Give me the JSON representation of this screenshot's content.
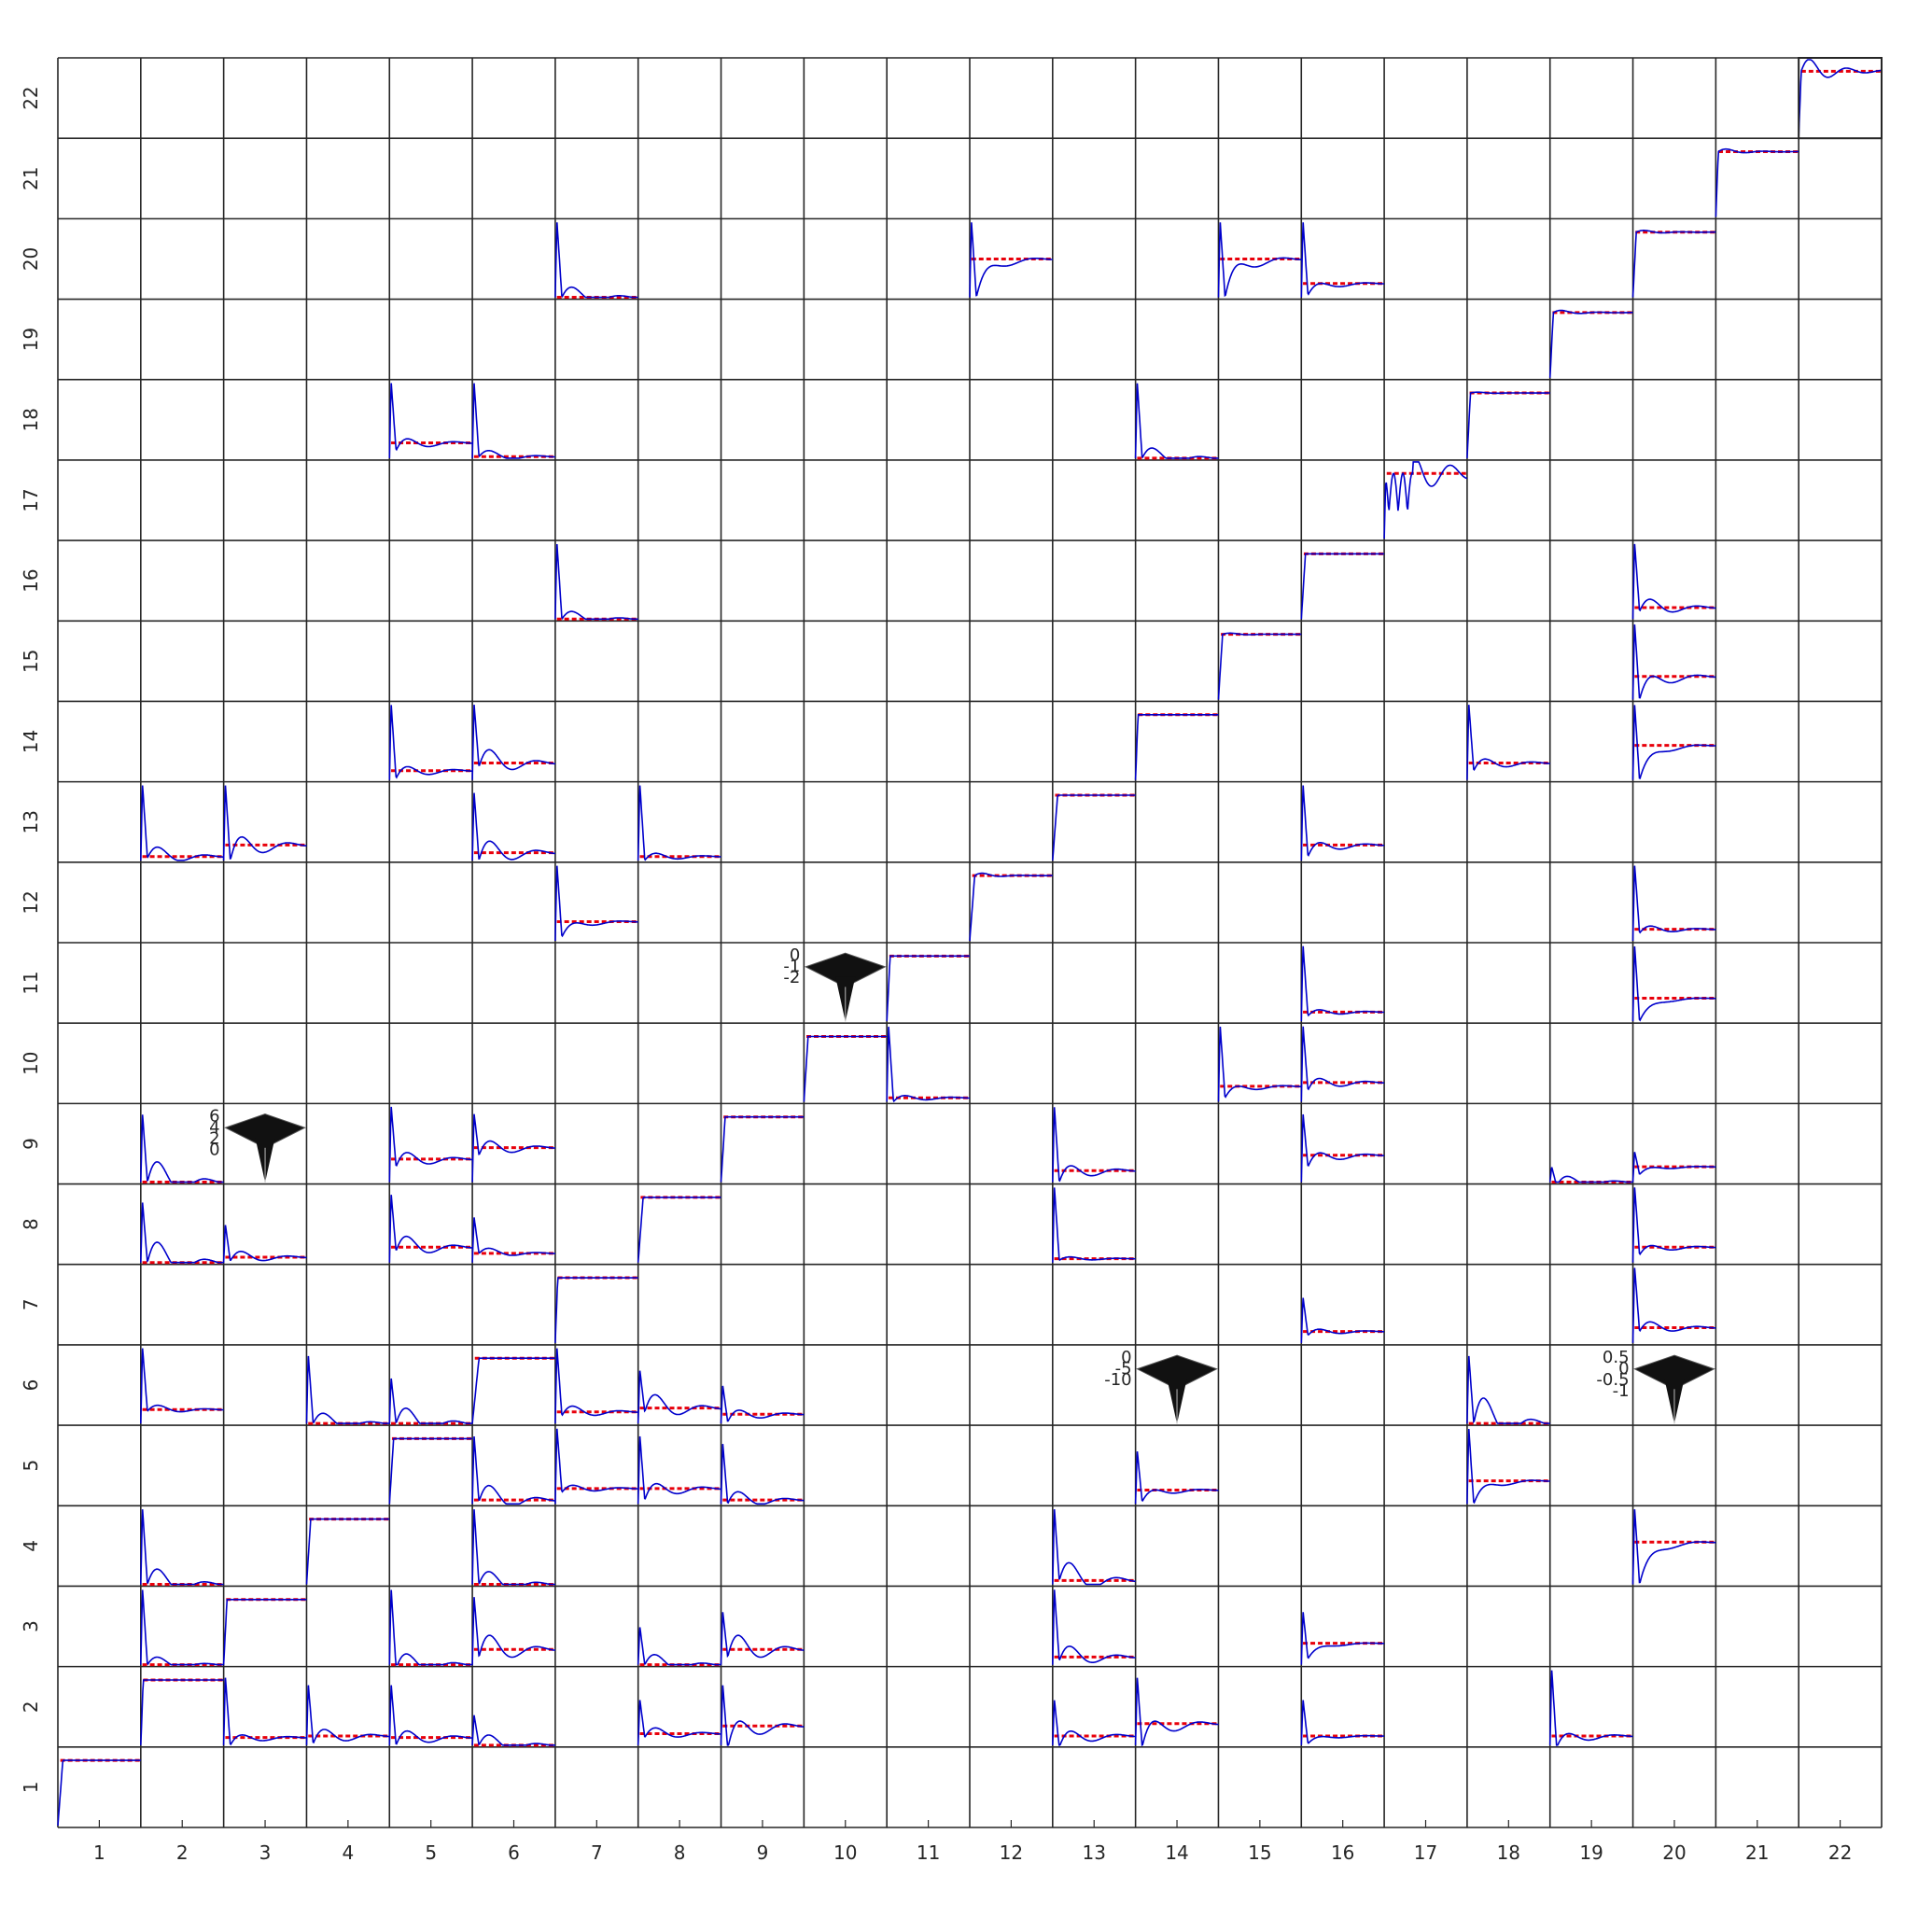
{
  "chart_data": {
    "type": "line",
    "title": "",
    "xlabel": "",
    "ylabel": "",
    "grid_size": 22,
    "x_tick_labels": [
      "1",
      "2",
      "3",
      "4",
      "5",
      "6",
      "7",
      "8",
      "9",
      "10",
      "11",
      "12",
      "13",
      "14",
      "15",
      "16",
      "17",
      "18",
      "19",
      "20",
      "21",
      "22"
    ],
    "y_tick_labels": [
      "1",
      "2",
      "3",
      "4",
      "5",
      "6",
      "7",
      "8",
      "9",
      "10",
      "11",
      "12",
      "13",
      "14",
      "15",
      "16",
      "17",
      "18",
      "19",
      "20",
      "21",
      "22"
    ],
    "grid": true,
    "colors": {
      "response": "#0000cc",
      "reference": "#e8000b",
      "frame": "#262626",
      "surface": "#111111"
    },
    "cell_response_range": [
      0,
      1
    ],
    "diagonal_response": {
      "kind": "step_response",
      "ref": 0.85,
      "cells": [
        {
          "col": 1,
          "row": 1,
          "rise": 0.06,
          "osc": 0.0,
          "decay": 4
        },
        {
          "col": 2,
          "row": 2,
          "rise": 0.03,
          "osc": 0.0,
          "decay": 5
        },
        {
          "col": 3,
          "row": 3,
          "rise": 0.04,
          "osc": 0.0,
          "decay": 5
        },
        {
          "col": 4,
          "row": 4,
          "rise": 0.05,
          "osc": 0.0,
          "decay": 5
        },
        {
          "col": 5,
          "row": 5,
          "rise": 0.05,
          "osc": 0.0,
          "decay": 5
        },
        {
          "col": 6,
          "row": 6,
          "rise": 0.08,
          "osc": 0.0,
          "decay": 5
        },
        {
          "col": 7,
          "row": 7,
          "rise": 0.03,
          "osc": 0.0,
          "decay": 5
        },
        {
          "col": 8,
          "row": 8,
          "rise": 0.06,
          "osc": 0.0,
          "decay": 5
        },
        {
          "col": 9,
          "row": 9,
          "rise": 0.05,
          "osc": 0.0,
          "decay": 5
        },
        {
          "col": 10,
          "row": 10,
          "rise": 0.05,
          "osc": 0.0,
          "decay": 5
        },
        {
          "col": 11,
          "row": 11,
          "rise": 0.04,
          "osc": 0.0,
          "decay": 5
        },
        {
          "col": 12,
          "row": 12,
          "rise": 0.06,
          "osc": 0.06,
          "decay": 5
        },
        {
          "col": 13,
          "row": 13,
          "rise": 0.06,
          "osc": 0.0,
          "decay": 5
        },
        {
          "col": 14,
          "row": 14,
          "rise": 0.03,
          "osc": 0.0,
          "decay": 5
        },
        {
          "col": 15,
          "row": 15,
          "rise": 0.05,
          "osc": 0.03,
          "decay": 5
        },
        {
          "col": 16,
          "row": 16,
          "rise": 0.05,
          "osc": 0.0,
          "decay": 5
        },
        {
          "col": 17,
          "row": 17,
          "rise": 0.02,
          "osc": 0.6,
          "decay": 2
        },
        {
          "col": 18,
          "row": 18,
          "rise": 0.04,
          "osc": 0.02,
          "decay": 5
        },
        {
          "col": 19,
          "row": 19,
          "rise": 0.04,
          "osc": 0.05,
          "decay": 4
        },
        {
          "col": 20,
          "row": 20,
          "rise": 0.04,
          "osc": 0.04,
          "decay": 4
        },
        {
          "col": 21,
          "row": 21,
          "rise": 0.03,
          "osc": 0.06,
          "decay": 4
        },
        {
          "col": 22,
          "row": 22,
          "rise": 0.03,
          "osc": 0.25,
          "decay": 3
        }
      ]
    },
    "coupling_responses": {
      "kind": "impulse_response",
      "cells": [
        {
          "col": 2,
          "row": 13,
          "ref": 0.05,
          "peak": 1.0,
          "hump": 0.2,
          "dip": -0.02
        },
        {
          "col": 3,
          "row": 13,
          "ref": 0.2,
          "peak": 1.0,
          "hump": 0.3,
          "dip": -0.2
        },
        {
          "col": 2,
          "row": 9,
          "ref": 0.0,
          "peak": 0.9,
          "hump": 0.4,
          "dip": 0.0
        },
        {
          "col": 2,
          "row": 8,
          "ref": 0.0,
          "peak": 0.8,
          "hump": 0.4,
          "dip": 0.0
        },
        {
          "col": 3,
          "row": 8,
          "ref": 0.07,
          "peak": 0.5,
          "hump": 0.15,
          "dip": -0.05
        },
        {
          "col": 2,
          "row": 6,
          "ref": 0.18,
          "peak": 1.0,
          "hump": 0.1,
          "dip": -0.02
        },
        {
          "col": 2,
          "row": 4,
          "ref": 0.0,
          "peak": 1.0,
          "hump": 0.3,
          "dip": 0.0
        },
        {
          "col": 2,
          "row": 3,
          "ref": 0.0,
          "peak": 1.0,
          "hump": 0.15,
          "dip": 0.0
        },
        {
          "col": 3,
          "row": 2,
          "ref": 0.1,
          "peak": 0.9,
          "hump": 0.12,
          "dip": -0.1
        },
        {
          "col": 4,
          "row": 6,
          "ref": 0.0,
          "peak": 0.9,
          "hump": 0.2,
          "dip": 0.0
        },
        {
          "col": 4,
          "row": 2,
          "ref": 0.12,
          "peak": 0.8,
          "hump": 0.2,
          "dip": -0.1
        },
        {
          "col": 5,
          "row": 18,
          "ref": 0.2,
          "peak": 1.0,
          "hump": 0.15,
          "dip": -0.1
        },
        {
          "col": 5,
          "row": 14,
          "ref": 0.12,
          "peak": 1.0,
          "hump": 0.15,
          "dip": -0.1
        },
        {
          "col": 5,
          "row": 9,
          "ref": 0.3,
          "peak": 1.0,
          "hump": 0.2,
          "dip": -0.1
        },
        {
          "col": 5,
          "row": 8,
          "ref": 0.2,
          "peak": 0.9,
          "hump": 0.25,
          "dip": -0.05
        },
        {
          "col": 5,
          "row": 6,
          "ref": 0.0,
          "peak": 0.6,
          "hump": 0.3,
          "dip": 0.0
        },
        {
          "col": 5,
          "row": 3,
          "ref": 0.0,
          "peak": 1.0,
          "hump": 0.25,
          "dip": -0.05
        },
        {
          "col": 5,
          "row": 2,
          "ref": 0.1,
          "peak": 0.8,
          "hump": 0.2,
          "dip": -0.1
        },
        {
          "col": 6,
          "row": 18,
          "ref": 0.02,
          "peak": 1.0,
          "hump": 0.12,
          "dip": 0.0
        },
        {
          "col": 6,
          "row": 14,
          "ref": 0.22,
          "peak": 1.0,
          "hump": 0.3,
          "dip": -0.05
        },
        {
          "col": 6,
          "row": 13,
          "ref": 0.1,
          "peak": 0.9,
          "hump": 0.3,
          "dip": -0.1
        },
        {
          "col": 6,
          "row": 9,
          "ref": 0.45,
          "peak": 0.9,
          "hump": 0.2,
          "dip": -0.1
        },
        {
          "col": 6,
          "row": 8,
          "ref": 0.12,
          "peak": 0.6,
          "hump": 0.1,
          "dip": 0.0
        },
        {
          "col": 6,
          "row": 5,
          "ref": 0.05,
          "peak": 0.9,
          "hump": 0.3,
          "dip": -0.02
        },
        {
          "col": 6,
          "row": 4,
          "ref": 0.0,
          "peak": 1.0,
          "hump": 0.25,
          "dip": 0.0
        },
        {
          "col": 6,
          "row": 3,
          "ref": 0.2,
          "peak": 0.9,
          "hump": 0.35,
          "dip": -0.1
        },
        {
          "col": 6,
          "row": 2,
          "ref": 0.0,
          "peak": 0.4,
          "hump": 0.2,
          "dip": 0.0
        },
        {
          "col": 7,
          "row": 20,
          "ref": 0.0,
          "peak": 1.0,
          "hump": 0.2,
          "dip": 0.0
        },
        {
          "col": 7,
          "row": 16,
          "ref": 0.0,
          "peak": 1.0,
          "hump": 0.15,
          "dip": 0.0
        },
        {
          "col": 7,
          "row": 12,
          "ref": 0.25,
          "peak": 1.0,
          "hump": 0.1,
          "dip": -0.2
        },
        {
          "col": 7,
          "row": 6,
          "ref": 0.15,
          "peak": 1.0,
          "hump": 0.15,
          "dip": -0.05
        },
        {
          "col": 7,
          "row": 5,
          "ref": 0.2,
          "peak": 1.0,
          "hump": 0.1,
          "dip": -0.05
        },
        {
          "col": 8,
          "row": 13,
          "ref": 0.05,
          "peak": 1.0,
          "hump": 0.1,
          "dip": -0.05
        },
        {
          "col": 8,
          "row": 6,
          "ref": 0.2,
          "peak": 0.7,
          "hump": 0.3,
          "dip": -0.05
        },
        {
          "col": 8,
          "row": 5,
          "ref": 0.2,
          "peak": 0.9,
          "hump": 0.2,
          "dip": -0.15
        },
        {
          "col": 8,
          "row": 3,
          "ref": 0.0,
          "peak": 0.5,
          "hump": 0.2,
          "dip": 0.0
        },
        {
          "col": 8,
          "row": 2,
          "ref": 0.15,
          "peak": 0.6,
          "hump": 0.15,
          "dip": -0.05
        },
        {
          "col": 9,
          "row": 6,
          "ref": 0.12,
          "peak": 0.5,
          "hump": 0.15,
          "dip": -0.1
        },
        {
          "col": 9,
          "row": 5,
          "ref": 0.05,
          "peak": 0.8,
          "hump": 0.2,
          "dip": -0.05
        },
        {
          "col": 9,
          "row": 3,
          "ref": 0.2,
          "peak": 0.7,
          "hump": 0.35,
          "dip": -0.1
        },
        {
          "col": 9,
          "row": 2,
          "ref": 0.25,
          "peak": 0.8,
          "hump": 0.3,
          "dip": -0.3
        },
        {
          "col": 11,
          "row": 10,
          "ref": 0.05,
          "peak": 1.0,
          "hump": 0.08,
          "dip": -0.05
        },
        {
          "col": 12,
          "row": 20,
          "ref": 0.5,
          "peak": 1.0,
          "hump": 0.15,
          "dip": -0.5
        },
        {
          "col": 13,
          "row": 9,
          "ref": 0.15,
          "peak": 1.0,
          "hump": 0.2,
          "dip": -0.15
        },
        {
          "col": 13,
          "row": 8,
          "ref": 0.05,
          "peak": 1.0,
          "hump": 0.05,
          "dip": -0.02
        },
        {
          "col": 13,
          "row": 4,
          "ref": 0.05,
          "peak": 1.0,
          "hump": 0.35,
          "dip": 0.0
        },
        {
          "col": 13,
          "row": 3,
          "ref": 0.1,
          "peak": 1.0,
          "hump": 0.25,
          "dip": -0.05
        },
        {
          "col": 13,
          "row": 2,
          "ref": 0.12,
          "peak": 0.6,
          "hump": 0.2,
          "dip": -0.15
        },
        {
          "col": 14,
          "row": 18,
          "ref": 0.0,
          "peak": 1.0,
          "hump": 0.2,
          "dip": 0.0
        },
        {
          "col": 14,
          "row": 5,
          "ref": 0.18,
          "peak": 0.7,
          "hump": 0.1,
          "dip": -0.15
        },
        {
          "col": 14,
          "row": 2,
          "ref": 0.28,
          "peak": 0.9,
          "hump": 0.25,
          "dip": -0.3
        },
        {
          "col": 15,
          "row": 20,
          "ref": 0.5,
          "peak": 1.0,
          "hump": 0.2,
          "dip": -0.5
        },
        {
          "col": 15,
          "row": 10,
          "ref": 0.2,
          "peak": 1.0,
          "hump": 0.1,
          "dip": -0.15
        },
        {
          "col": 16,
          "row": 20,
          "ref": 0.18,
          "peak": 1.0,
          "hump": 0.1,
          "dip": -0.15
        },
        {
          "col": 16,
          "row": 13,
          "ref": 0.2,
          "peak": 1.0,
          "hump": 0.15,
          "dip": -0.15
        },
        {
          "col": 16,
          "row": 11,
          "ref": 0.12,
          "peak": 1.0,
          "hump": 0.08,
          "dip": -0.05
        },
        {
          "col": 16,
          "row": 10,
          "ref": 0.25,
          "peak": 1.0,
          "hump": 0.15,
          "dip": -0.1
        },
        {
          "col": 16,
          "row": 9,
          "ref": 0.35,
          "peak": 0.9,
          "hump": 0.15,
          "dip": -0.15
        },
        {
          "col": 16,
          "row": 7,
          "ref": 0.15,
          "peak": 0.6,
          "hump": 0.08,
          "dip": -0.05
        },
        {
          "col": 16,
          "row": 3,
          "ref": 0.28,
          "peak": 0.7,
          "hump": 0.05,
          "dip": -0.2
        },
        {
          "col": 16,
          "row": 2,
          "ref": 0.12,
          "peak": 0.6,
          "hump": 0.05,
          "dip": -0.1
        },
        {
          "col": 18,
          "row": 14,
          "ref": 0.22,
          "peak": 1.0,
          "hump": 0.15,
          "dip": -0.1
        },
        {
          "col": 18,
          "row": 6,
          "ref": 0.0,
          "peak": 0.9,
          "hump": 0.5,
          "dip": 0.0
        },
        {
          "col": 18,
          "row": 5,
          "ref": 0.3,
          "peak": 1.0,
          "hump": 0.1,
          "dip": -0.3
        },
        {
          "col": 19,
          "row": 9,
          "ref": 0.0,
          "peak": 0.2,
          "hump": 0.15,
          "dip": -0.05
        },
        {
          "col": 19,
          "row": 2,
          "ref": 0.12,
          "peak": 1.0,
          "hump": 0.15,
          "dip": -0.15
        },
        {
          "col": 20,
          "row": 16,
          "ref": 0.15,
          "peak": 1.0,
          "hump": 0.2,
          "dip": -0.05
        },
        {
          "col": 20,
          "row": 15,
          "ref": 0.3,
          "peak": 1.0,
          "hump": 0.2,
          "dip": -0.3
        },
        {
          "col": 20,
          "row": 14,
          "ref": 0.45,
          "peak": 1.0,
          "hump": 0.1,
          "dip": -0.45
        },
        {
          "col": 20,
          "row": 12,
          "ref": 0.15,
          "peak": 1.0,
          "hump": 0.1,
          "dip": -0.05
        },
        {
          "col": 20,
          "row": 11,
          "ref": 0.3,
          "peak": 1.0,
          "hump": 0.05,
          "dip": -0.3
        },
        {
          "col": 20,
          "row": 9,
          "ref": 0.2,
          "peak": 0.4,
          "hump": 0.05,
          "dip": -0.1
        },
        {
          "col": 20,
          "row": 8,
          "ref": 0.2,
          "peak": 1.0,
          "hump": 0.1,
          "dip": -0.1
        },
        {
          "col": 20,
          "row": 7,
          "ref": 0.2,
          "peak": 1.0,
          "hump": 0.15,
          "dip": -0.05
        },
        {
          "col": 20,
          "row": 4,
          "ref": 0.55,
          "peak": 1.0,
          "hump": 0.1,
          "dip": -0.55
        }
      ]
    },
    "surface_insets": [
      {
        "col": 3,
        "row": 9,
        "z_ticks": [
          "6",
          "4",
          "2",
          "0"
        ]
      },
      {
        "col": 10,
        "row": 11,
        "z_ticks": [
          "0",
          "-1",
          "-2"
        ]
      },
      {
        "col": 14,
        "row": 6,
        "z_ticks": [
          "0",
          "-5",
          "-10"
        ]
      },
      {
        "col": 20,
        "row": 6,
        "z_ticks": [
          "0.5",
          "0",
          "-0.5",
          "-1"
        ]
      }
    ]
  }
}
